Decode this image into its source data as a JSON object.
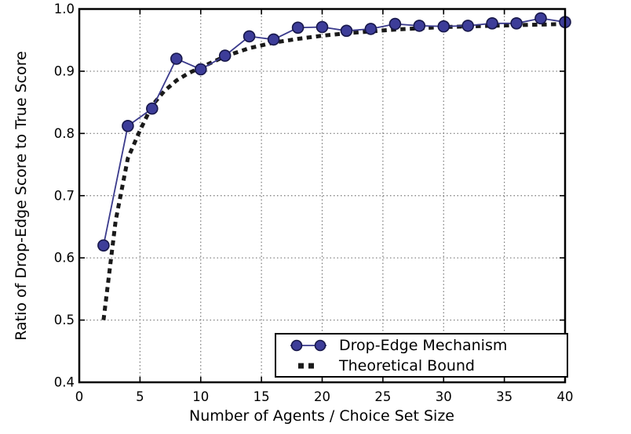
{
  "chart_data": {
    "type": "line",
    "title": "",
    "xlabel": "Number of Agents / Choice Set Size",
    "ylabel": "Ratio of Drop-Edge Score to True Score",
    "xlim": [
      0,
      40
    ],
    "ylim": [
      0.4,
      1.0
    ],
    "xticks": [
      0,
      5,
      10,
      15,
      20,
      25,
      30,
      35,
      40
    ],
    "xtick_labels": [
      "0",
      "5",
      "10",
      "15",
      "20",
      "25",
      "30",
      "35",
      "40"
    ],
    "yticks": [
      0.4,
      0.5,
      0.6,
      0.7,
      0.8,
      0.9,
      1.0
    ],
    "ytick_labels": [
      "0.4",
      "0.5",
      "0.6",
      "0.7",
      "0.8",
      "0.9",
      "1.0"
    ],
    "grid": true,
    "grid_style": "dotted",
    "legend": {
      "position": "lower right",
      "entries": [
        {
          "label": "Drop-Edge Mechanism",
          "marker": "circle",
          "line": "solid"
        },
        {
          "label": "Theoretical Bound",
          "marker": "none",
          "line": "dashed"
        }
      ]
    },
    "series": [
      {
        "name": "Drop-Edge Mechanism",
        "style": "line+markers",
        "x": [
          2,
          4,
          6,
          8,
          10,
          12,
          14,
          16,
          18,
          20,
          22,
          24,
          26,
          28,
          30,
          32,
          34,
          36,
          38,
          40
        ],
        "y": [
          0.62,
          0.812,
          0.84,
          0.92,
          0.903,
          0.925,
          0.956,
          0.951,
          0.97,
          0.971,
          0.965,
          0.968,
          0.976,
          0.973,
          0.972,
          0.973,
          0.977,
          0.977,
          0.985,
          0.979
        ]
      },
      {
        "name": "Theoretical Bound",
        "style": "dashed",
        "x": [
          2,
          3,
          4,
          5,
          6,
          7,
          8,
          9,
          10,
          12,
          14,
          16,
          18,
          20,
          22,
          24,
          26,
          28,
          30,
          32,
          34,
          36,
          38,
          40
        ],
        "y": [
          0.5,
          0.66,
          0.76,
          0.805,
          0.845,
          0.868,
          0.885,
          0.897,
          0.906,
          0.924,
          0.937,
          0.946,
          0.952,
          0.957,
          0.961,
          0.964,
          0.967,
          0.969,
          0.971,
          0.972,
          0.973,
          0.974,
          0.975,
          0.976
        ]
      }
    ],
    "colors": {
      "series_line": "#3a3a8c",
      "marker_fill": "#3d3d99",
      "marker_edge": "#17174a",
      "bound_line": "#1a1a1a",
      "grid": "#777777",
      "axis": "#000000",
      "background": "#ffffff"
    }
  }
}
